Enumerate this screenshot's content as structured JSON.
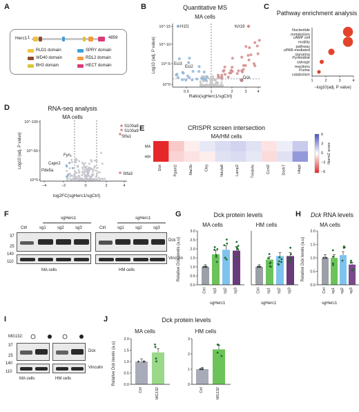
{
  "panels": {
    "A": {
      "label": "A",
      "protein": "Herc1",
      "start": "1",
      "end": "4859",
      "legend": [
        {
          "name": "RLD1 domain",
          "color": "#f2c23a"
        },
        {
          "name": "SPRY domain",
          "color": "#3aa0d8"
        },
        {
          "name": "WD40 domain",
          "color": "#8e4a2a"
        },
        {
          "name": "RDL2 domain",
          "color": "#f39c3a"
        },
        {
          "name": "BH3 domain",
          "color": "#d9c53a"
        },
        {
          "name": "HECT domain",
          "color": "#d93a7a"
        }
      ]
    },
    "B": {
      "label": "B",
      "title": "Quantitative MS",
      "subtitle": "MA cells",
      "xlabel": "Ratio(sgHerc1/sgCtrl)",
      "ylabel": "Log10 (adj. P value)",
      "xticks": [
        "0.5",
        "1",
        "2",
        "3",
        "4"
      ],
      "yticks": [
        "10^-15",
        "10^-10",
        "10^-5",
        "10^0"
      ],
      "annotations": [
        "H1f1",
        "Krt19",
        "Eci3",
        "Eci2",
        "Dck"
      ]
    },
    "C": {
      "label": "C",
      "title": "Pathway enrichment analysis",
      "xlabel": "−log10(adj. P value)",
      "xticks": [
        "1",
        "2",
        "3",
        "4"
      ]
    },
    "D": {
      "label": "D",
      "title": "RNA-seq analysis",
      "subtitle": "MA cells",
      "xlabel": "log2FC(sgHerc1/sgCtrl)",
      "ylabel": "Log10 (adj. P value)",
      "xticks": [
        "−4",
        "−2",
        "0",
        "2",
        "4"
      ],
      "yticks": [
        "10^-100",
        "10^-50",
        "10^0"
      ],
      "annotations": [
        "S100a8",
        "S100a9",
        "Stfa1",
        "Fyn",
        "Capn2",
        "Pde5a",
        "Stfa3"
      ]
    },
    "E": {
      "label": "E",
      "title": "CRISPR screen intersection",
      "subtitle": "MA/HM cells",
      "rows": [
        "MA",
        "HM"
      ],
      "legend_title": "NormZ score",
      "legend_ticks": [
        "6",
        "3",
        "0",
        "−3",
        "−6"
      ]
    },
    "F": {
      "label": "F",
      "group_left": "sgHerc1",
      "group_right": "sgHerc1",
      "lanes": [
        "Ctrl",
        "sg1",
        "sg2",
        "sg3",
        "Ctrl",
        "sg1",
        "sg2",
        "sg3"
      ],
      "mw": [
        "37",
        "25",
        "140",
        "110"
      ],
      "rows": [
        "Dck",
        "Vinculin"
      ],
      "cells_left": "MA cells",
      "cells_right": "HM cells"
    },
    "G": {
      "label": "G",
      "title": "Dck protein levels",
      "sub_left": "MA cells",
      "sub_right": "HM cells",
      "ylabel": "Relative Dck levels (a.u)",
      "yticks": [
        "0.0",
        "0.5",
        "1.0",
        "1.5",
        "2.0",
        "2.5",
        "3.0"
      ],
      "group_label": "sgHerc1"
    },
    "H": {
      "label": "H",
      "title_italic": "Dck",
      "title_rest": " RNA levels",
      "subtitle": "MA cells",
      "ylabel": "Relative Dck levels (a.u)",
      "yticks": [
        "0.0",
        "0.5",
        "1.0",
        "1.5",
        "2.0"
      ],
      "group_label": "sgHerc1"
    },
    "I": {
      "label": "I",
      "treatment": "MG132:",
      "mw": [
        "37",
        "25",
        "140",
        "110"
      ],
      "rows": [
        "Dck",
        "Vinculin"
      ],
      "cells_left": "MA cells",
      "cells_right": "HM cells"
    },
    "J": {
      "label": "J",
      "title": "Dck protein levels",
      "sub_left": "MA cells",
      "sub_right": "HM cells",
      "ylabel": "Relative Dck levels (a.u)",
      "yticks_left": [
        "0.0",
        "0.5",
        "1.0",
        "1.5",
        "2.0"
      ],
      "yticks_right": [
        "0",
        "1",
        "2",
        "3"
      ],
      "categories": [
        "Ctrl",
        "MG132"
      ]
    }
  },
  "chart_data": [
    {
      "panel": "C",
      "type": "scatter",
      "title": "Pathway enrichment analysis",
      "xlabel": "−log10(adj. P value)",
      "xlim": [
        1,
        4
      ],
      "categories": [
        "Nucleotide metabolism",
        "cAMP cell motility pathway",
        "uPAR-mediated signaling",
        "Pyrimidine salvage reactions",
        "Purine catabolism"
      ],
      "x": [
        3.6,
        3.6,
        2.4,
        1.7,
        1.5
      ],
      "color": "#e0391f"
    },
    {
      "panel": "E",
      "type": "heatmap",
      "categories": [
        "Dck",
        "Pgam2",
        "Mar2b",
        "Ctrg",
        "Ndufa8",
        "Lamp2",
        "Tmsb4x",
        "Ccnl2",
        "Dock7",
        "Hbgd"
      ],
      "rows": [
        "MA",
        "HM"
      ],
      "values": [
        [
          -6,
          -1.5,
          -0.5,
          0.8,
          1.2,
          1.5,
          1.0,
          -0.8,
          0.6,
          1.8
        ],
        [
          -6,
          -1.2,
          -0.8,
          -0.5,
          1.0,
          1.2,
          0.8,
          -1.0,
          1.0,
          3.5
        ]
      ],
      "zlim": [
        -6,
        6
      ]
    },
    {
      "panel": "G-MA",
      "type": "bar",
      "categories": [
        "Ctrl",
        "sg1",
        "sg2",
        "sg3"
      ],
      "values": [
        1.0,
        1.7,
        1.95,
        1.9
      ],
      "ylim": [
        0,
        3
      ]
    },
    {
      "panel": "G-HM",
      "type": "bar",
      "categories": [
        "Ctrl",
        "sg1",
        "sg2",
        "sg3"
      ],
      "values": [
        1.0,
        1.4,
        1.6,
        1.6
      ],
      "ylim": [
        0,
        3
      ]
    },
    {
      "panel": "H",
      "type": "bar",
      "categories": [
        "Ctrl",
        "sg1",
        "sg2",
        "sg3"
      ],
      "values": [
        1.0,
        1.0,
        1.1,
        0.75
      ],
      "ylim": [
        0,
        2
      ]
    },
    {
      "panel": "J-MA",
      "type": "bar",
      "categories": [
        "Ctrl",
        "MG132"
      ],
      "values": [
        1.0,
        1.4
      ],
      "ylim": [
        0,
        2
      ]
    },
    {
      "panel": "J-HM",
      "type": "bar",
      "categories": [
        "Ctrl",
        "MG132"
      ],
      "values": [
        1.0,
        2.3
      ],
      "ylim": [
        0,
        3
      ]
    }
  ]
}
